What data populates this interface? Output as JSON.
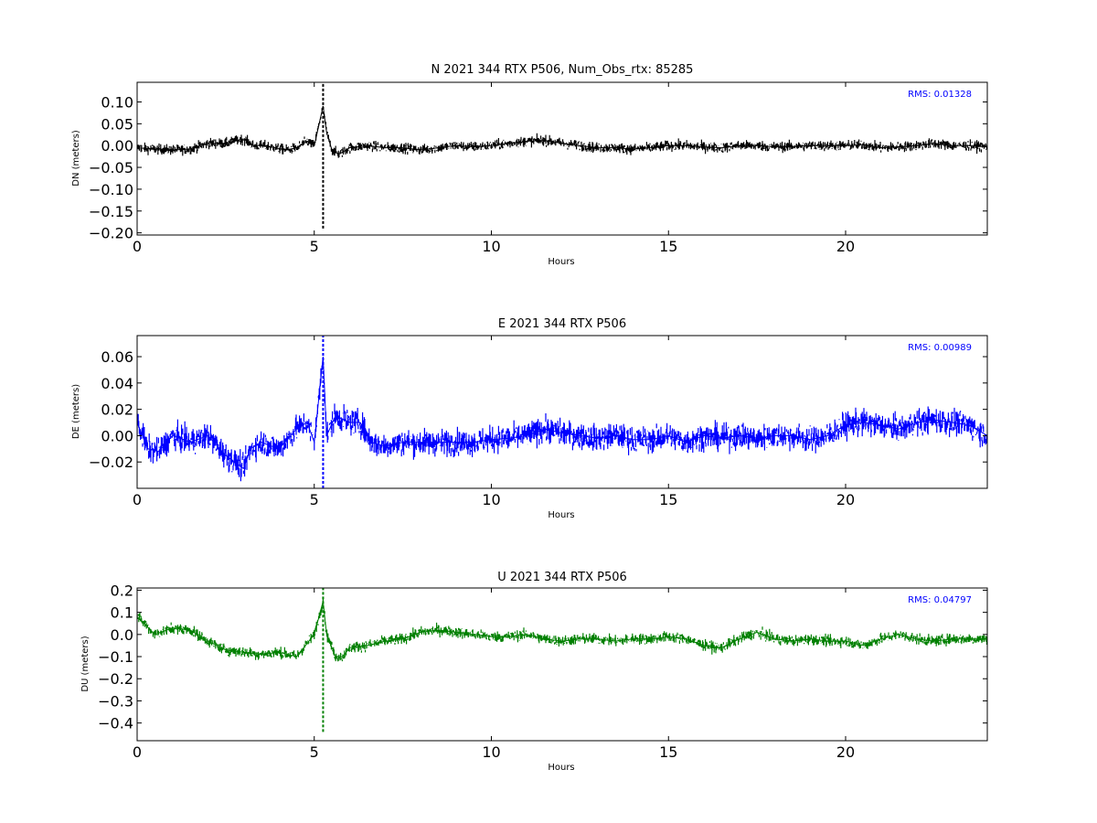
{
  "chart_data": [
    {
      "type": "scatter",
      "title": "N 2021 344 RTX  P506, Num_Obs_rtx: 85285",
      "xlabel": "Hours",
      "ylabel": "DN (meters)",
      "xlim": [
        0,
        24
      ],
      "ylim": [
        -0.205,
        0.145
      ],
      "xticks": [
        "0",
        "5",
        "10",
        "15",
        "20"
      ],
      "yticks": [
        "0.10",
        "0.05",
        "0.00",
        "−0.05",
        "−0.10",
        "−0.15",
        "−0.20"
      ],
      "rms_label": "RMS:  0.01328",
      "color": "#000000",
      "grid": false,
      "series": [
        {
          "x": [
            0,
            0.5,
            1,
            1.5,
            2,
            2.5,
            3,
            3.3,
            3.6,
            3.9,
            4.2,
            4.5,
            4.8,
            5,
            5.25,
            5.35,
            5.5,
            5.7,
            6,
            6.5,
            7,
            7.5,
            8,
            8.5,
            9,
            9.5,
            10,
            10.5,
            11,
            11.5,
            12,
            12.5,
            13,
            13.5,
            14,
            14.5,
            15,
            15.5,
            16,
            16.5,
            17,
            17.5,
            18,
            18.5,
            19,
            19.5,
            20,
            20.5,
            21,
            21.5,
            22,
            22.5,
            23,
            23.5,
            24
          ],
          "y": [
            -0.005,
            -0.008,
            -0.01,
            -0.008,
            0.005,
            0.005,
            0.015,
            0.0,
            0.0,
            -0.005,
            -0.01,
            -0.005,
            0.01,
            0.0,
            0.09,
            0.03,
            -0.01,
            -0.02,
            -0.005,
            0.0,
            -0.005,
            -0.005,
            -0.01,
            -0.005,
            0.0,
            -0.003,
            0.0,
            0.005,
            0.01,
            0.012,
            0.005,
            0.0,
            -0.005,
            -0.005,
            -0.008,
            -0.005,
            0.0,
            0.0,
            -0.003,
            -0.005,
            0.0,
            0.0,
            -0.003,
            -0.002,
            0.0,
            0.0,
            0.0,
            0.002,
            -0.005,
            -0.003,
            0.0,
            0.005,
            0.0,
            0.0,
            -0.003
          ]
        }
      ]
    },
    {
      "type": "scatter",
      "title": "E 2021 344 RTX  P506",
      "xlabel": "Hours",
      "ylabel": "DE (meters)",
      "xlim": [
        0,
        24
      ],
      "ylim": [
        -0.04,
        0.076
      ],
      "xticks": [
        "0",
        "5",
        "10",
        "15",
        "20"
      ],
      "yticks": [
        "0.06",
        "0.04",
        "0.02",
        "0.00",
        "−0.02"
      ],
      "rms_label": "RMS:  0.00989",
      "color": "#0000ff",
      "grid": false,
      "series": [
        {
          "x": [
            0,
            0.3,
            0.6,
            1,
            1.5,
            2,
            2.5,
            3,
            3.2,
            3.5,
            4,
            4.5,
            4.8,
            5,
            5.25,
            5.35,
            5.6,
            6,
            6.3,
            6.6,
            7,
            7.5,
            8,
            8.5,
            9,
            9.5,
            10,
            10.5,
            11,
            11.5,
            12,
            12.5,
            13,
            13.5,
            14,
            14.5,
            15,
            15.5,
            16,
            16.5,
            17,
            17.5,
            18,
            18.5,
            19,
            19.5,
            20,
            20.5,
            21,
            21.5,
            22,
            22.5,
            23,
            23.5,
            24
          ],
          "y": [
            0.01,
            -0.01,
            -0.012,
            0.0,
            -0.005,
            0.0,
            -0.015,
            -0.025,
            -0.01,
            -0.005,
            -0.01,
            0.005,
            0.01,
            -0.005,
            0.06,
            0.0,
            0.015,
            0.01,
            0.01,
            -0.005,
            -0.008,
            -0.005,
            -0.005,
            -0.005,
            -0.005,
            -0.005,
            -0.003,
            -0.002,
            0.0,
            0.005,
            0.002,
            0.0,
            -0.002,
            0.0,
            -0.003,
            -0.003,
            0.0,
            -0.005,
            0.0,
            -0.002,
            0.0,
            -0.002,
            0.0,
            0.0,
            -0.003,
            0.0,
            0.008,
            0.01,
            0.008,
            0.005,
            0.01,
            0.012,
            0.01,
            0.008,
            0.0
          ]
        }
      ]
    },
    {
      "type": "scatter",
      "title": "U 2021 344 RTX  P506",
      "xlabel": "Hours",
      "ylabel": "DU (meters)",
      "xlim": [
        0,
        24
      ],
      "ylim": [
        -0.48,
        0.21
      ],
      "xticks": [
        "0",
        "5",
        "10",
        "15",
        "20"
      ],
      "yticks": [
        "0.2",
        "0.1",
        "0.0",
        "−0.1",
        "−0.2",
        "−0.3",
        "−0.4"
      ],
      "rms_label": "RMS:  0.04797",
      "color": "#008000",
      "grid": false,
      "series": [
        {
          "x": [
            0,
            0.2,
            0.5,
            1,
            1.5,
            2,
            2.5,
            3,
            3.5,
            4,
            4.5,
            5,
            5.25,
            5.35,
            5.6,
            5.8,
            6,
            6.5,
            7,
            7.5,
            8,
            8.5,
            9,
            9.5,
            10,
            10.5,
            11,
            11.5,
            12,
            12.5,
            13,
            13.5,
            14,
            14.5,
            15,
            15.5,
            16,
            16.5,
            17,
            17.5,
            18,
            18.5,
            19,
            19.5,
            20,
            20.5,
            21,
            21.5,
            22,
            22.5,
            23,
            23.5,
            24
          ],
          "y": [
            0.08,
            0.05,
            0.0,
            0.03,
            0.02,
            -0.03,
            -0.07,
            -0.08,
            -0.09,
            -0.08,
            -0.1,
            0.0,
            0.15,
            0.0,
            -0.1,
            -0.1,
            -0.06,
            -0.05,
            -0.03,
            -0.02,
            0.01,
            0.02,
            0.01,
            0.0,
            -0.01,
            -0.01,
            0.0,
            -0.02,
            -0.03,
            -0.02,
            -0.02,
            -0.03,
            -0.02,
            -0.02,
            -0.01,
            -0.02,
            -0.05,
            -0.06,
            -0.02,
            0.01,
            -0.02,
            -0.03,
            -0.02,
            -0.03,
            -0.03,
            -0.05,
            -0.02,
            0.0,
            -0.02,
            -0.03,
            -0.02,
            -0.02,
            -0.02
          ]
        }
      ]
    }
  ],
  "spikes": [
    {
      "x": 5.25,
      "lo": -0.19,
      "hi": 0.145
    },
    {
      "x": 5.25,
      "lo": -0.04,
      "hi": 0.076
    },
    {
      "x": 5.25,
      "lo": -0.44,
      "hi": 0.21
    }
  ],
  "noise": [
    0.012,
    0.01,
    0.025
  ]
}
